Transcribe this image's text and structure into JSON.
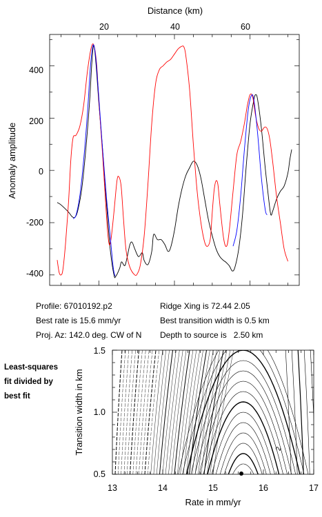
{
  "top_chart": {
    "xlabel": "Distance (km)",
    "ylabel": "Anomaly amplitude",
    "x_ticks": [
      "20",
      "40",
      "60"
    ],
    "y_ticks": [
      "400",
      "200",
      "0",
      "-200",
      "-400"
    ]
  },
  "info": {
    "profile": "Profile: 67010192.p2",
    "best_rate": "Best rate is 15.6 mm/yr",
    "proj_az": "Proj. Az: 142.0 deg. CW of N",
    "ridge_xing": "Ridge Xing is 72.44 2.05",
    "best_transition": "Best transition width is 0.5 km",
    "depth": "Depth to source is   2.50 km"
  },
  "bottom_chart": {
    "caption_lines": [
      "Least-squares",
      "fit divided by",
      "best fit"
    ],
    "xlabel": "Rate in mm/yr",
    "ylabel": "Transition width in km",
    "x_ticks": [
      "13",
      "14",
      "15",
      "16",
      "17"
    ],
    "y_ticks": [
      "1.5",
      "1.0",
      "0.5"
    ],
    "contour_label": "2"
  },
  "chart_data": [
    {
      "type": "line",
      "xlabel": "Distance (km)",
      "ylabel": "Anomaly amplitude",
      "xlim": [
        7,
        73
      ],
      "ylim": [
        -440,
        520
      ],
      "x_ticks": [
        20,
        40,
        60
      ],
      "y_ticks": [
        400,
        200,
        0,
        -200,
        -400
      ],
      "series": [
        {
          "color": "#000000",
          "points": [
            [
              9,
              -123
            ],
            [
              10,
              -132
            ],
            [
              12,
              -160
            ],
            [
              13,
              -178
            ],
            [
              13.8,
              -178
            ],
            [
              14.5,
              -150
            ],
            [
              15.5,
              -70
            ],
            [
              16.5,
              70
            ],
            [
              17.5,
              250
            ],
            [
              18.2,
              420
            ],
            [
              18.7,
              478
            ],
            [
              19.3,
              400
            ],
            [
              20,
              260
            ],
            [
              21,
              80
            ],
            [
              22,
              -120
            ],
            [
              23,
              -300
            ],
            [
              24,
              -400
            ],
            [
              24.5,
              -405
            ],
            [
              25.5,
              -375
            ],
            [
              26,
              -350
            ],
            [
              26.8,
              -365
            ],
            [
              27.3,
              -345
            ],
            [
              28.2,
              -285
            ],
            [
              28.8,
              -275
            ],
            [
              29.5,
              -300
            ],
            [
              30.5,
              -330
            ],
            [
              31.5,
              -315
            ],
            [
              32,
              -345
            ],
            [
              33,
              -360
            ],
            [
              34,
              -310
            ],
            [
              34.5,
              -245
            ],
            [
              35.5,
              -265
            ],
            [
              36.5,
              -265
            ],
            [
              37.5,
              -285
            ],
            [
              38.3,
              -310
            ],
            [
              39,
              -295
            ],
            [
              40,
              -230
            ],
            [
              41,
              -140
            ],
            [
              42,
              -70
            ],
            [
              43,
              -20
            ],
            [
              44,
              10
            ],
            [
              45,
              35
            ],
            [
              46,
              20
            ],
            [
              47,
              -30
            ],
            [
              48,
              -110
            ],
            [
              49,
              -190
            ],
            [
              50,
              -250
            ],
            [
              51,
              -300
            ],
            [
              52,
              -330
            ],
            [
              53,
              -345
            ],
            [
              53.5,
              -350
            ],
            [
              54.5,
              -365
            ],
            [
              55.3,
              -385
            ],
            [
              56,
              -370
            ],
            [
              57,
              -300
            ],
            [
              58,
              -170
            ],
            [
              59,
              20
            ],
            [
              60,
              180
            ],
            [
              61,
              270
            ],
            [
              61.5,
              290
            ],
            [
              62,
              270
            ],
            [
              63,
              160
            ],
            [
              64,
              10
            ],
            [
              65,
              -120
            ],
            [
              65.5,
              -170
            ],
            [
              66,
              -155
            ],
            [
              67,
              -110
            ],
            [
              68,
              -80
            ],
            [
              69,
              -60
            ],
            [
              70,
              -10
            ],
            [
              70.5,
              40
            ],
            [
              71,
              80
            ]
          ]
        },
        {
          "color": "#ff0000",
          "points": [
            [
              9,
              -343
            ],
            [
              9.5,
              -390
            ],
            [
              10,
              -400
            ],
            [
              10.5,
              -380
            ],
            [
              11.2,
              -280
            ],
            [
              12,
              -120
            ],
            [
              12.6,
              40
            ],
            [
              13.2,
              125
            ],
            [
              14,
              135
            ],
            [
              15,
              170
            ],
            [
              16,
              250
            ],
            [
              17,
              380
            ],
            [
              18,
              470
            ],
            [
              18.7,
              478
            ],
            [
              19.4,
              410
            ],
            [
              20,
              270
            ],
            [
              21,
              60
            ],
            [
              21.7,
              -100
            ],
            [
              22.3,
              -230
            ],
            [
              22.8,
              -285
            ],
            [
              23.3,
              -255
            ],
            [
              24,
              -160
            ],
            [
              24.8,
              -40
            ],
            [
              25.3,
              -25
            ],
            [
              25.9,
              -60
            ],
            [
              26.5,
              -180
            ],
            [
              27.2,
              -305
            ],
            [
              28.2,
              -370
            ],
            [
              29.5,
              -400
            ],
            [
              30.2,
              -395
            ],
            [
              31,
              -360
            ],
            [
              32,
              -250
            ],
            [
              33,
              -50
            ],
            [
              34,
              180
            ],
            [
              35,
              330
            ],
            [
              36,
              385
            ],
            [
              37,
              400
            ],
            [
              38,
              415
            ],
            [
              39,
              425
            ],
            [
              40,
              445
            ],
            [
              41,
              465
            ],
            [
              42,
              475
            ],
            [
              42.5,
              472
            ],
            [
              43,
              440
            ],
            [
              44,
              310
            ],
            [
              45,
              100
            ],
            [
              46,
              -80
            ],
            [
              47,
              -200
            ],
            [
              48,
              -275
            ],
            [
              48.8,
              -290
            ],
            [
              49.5,
              -260
            ],
            [
              50,
              -160
            ],
            [
              50.5,
              -75
            ],
            [
              51,
              -40
            ],
            [
              51.5,
              -55
            ],
            [
              52,
              -130
            ],
            [
              53,
              -260
            ],
            [
              53.8,
              -290
            ],
            [
              54.5,
              -230
            ],
            [
              55.5,
              -80
            ],
            [
              56.5,
              60
            ],
            [
              57.5,
              110
            ],
            [
              58.5,
              180
            ],
            [
              59.3,
              250
            ],
            [
              60,
              290
            ],
            [
              60.7,
              280
            ],
            [
              61.5,
              205
            ],
            [
              62.3,
              160
            ],
            [
              63,
              150
            ],
            [
              63.8,
              165
            ],
            [
              64.5,
              160
            ],
            [
              65.2,
              120
            ],
            [
              66,
              30
            ],
            [
              67,
              -100
            ],
            [
              68,
              -200
            ],
            [
              69,
              -300
            ],
            [
              70,
              -348
            ]
          ]
        },
        {
          "color": "#0000ff",
          "points": [
            [
              13.2,
              -185
            ],
            [
              14,
              -170
            ],
            [
              15,
              -95
            ],
            [
              16,
              40
            ],
            [
              17,
              220
            ],
            [
              17.8,
              400
            ],
            [
              18.5,
              480
            ],
            [
              19.2,
              430
            ],
            [
              20,
              280
            ],
            [
              21,
              80
            ],
            [
              22,
              -100
            ],
            [
              23,
              -250
            ],
            [
              23.8,
              -370
            ],
            [
              24.3,
              -405
            ]
          ]
        },
        {
          "color": "#0000ff",
          "points": [
            [
              55.5,
              -290
            ],
            [
              56.5,
              -230
            ],
            [
              57.5,
              -100
            ],
            [
              58.5,
              80
            ],
            [
              59.5,
              230
            ],
            [
              60.3,
              285
            ],
            [
              61,
              270
            ],
            [
              62,
              140
            ],
            [
              63,
              -30
            ],
            [
              64,
              -150
            ],
            [
              64.5,
              -170
            ]
          ]
        }
      ]
    },
    {
      "type": "contour",
      "xlabel": "Rate in mm/yr",
      "ylabel": "Transition width in km",
      "xlim": [
        13,
        17
      ],
      "ylim": [
        0.5,
        1.5
      ],
      "x_ticks": [
        13,
        14,
        15,
        16,
        17
      ],
      "y_ticks": [
        0.5,
        1.0,
        1.5
      ],
      "best_fit": {
        "rate": 15.6,
        "transition_width": 0.5
      },
      "contour_label": 2
    }
  ]
}
